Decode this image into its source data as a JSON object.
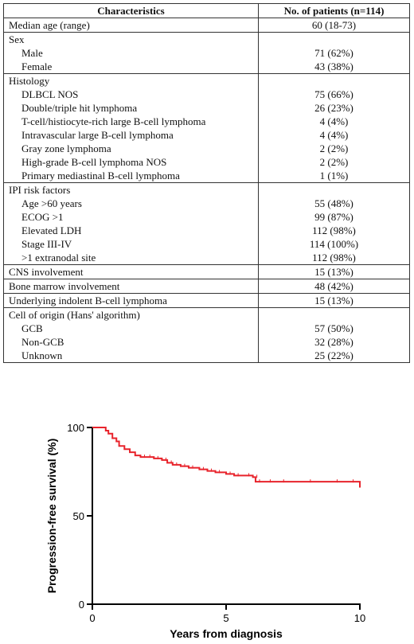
{
  "table": {
    "header": {
      "col1": "Characteristics",
      "col2": "No. of patients (n=114)"
    },
    "rows": [
      {
        "label": "Median age (range)",
        "value": "60 (18-73)",
        "indent": false,
        "group_start": true
      },
      {
        "label": "Sex",
        "value": "",
        "indent": false,
        "group_start": true
      },
      {
        "label": "Male",
        "value": "71 (62%)",
        "indent": true,
        "group_start": false
      },
      {
        "label": "Female",
        "value": "43 (38%)",
        "indent": true,
        "group_start": false
      },
      {
        "label": "Histology",
        "value": "",
        "indent": false,
        "group_start": true
      },
      {
        "label": "DLBCL NOS",
        "value": "75 (66%)",
        "indent": true,
        "group_start": false
      },
      {
        "label": "Double/triple hit lymphoma",
        "value": "26 (23%)",
        "indent": true,
        "group_start": false
      },
      {
        "label": "T-cell/histiocyte-rich large B-cell lymphoma",
        "value": "4 (4%)",
        "indent": true,
        "group_start": false
      },
      {
        "label": "Intravascular large B-cell lymphoma",
        "value": "4 (4%)",
        "indent": true,
        "group_start": false
      },
      {
        "label": "Gray zone lymphoma",
        "value": "2 (2%)",
        "indent": true,
        "group_start": false
      },
      {
        "label": "High-grade B-cell lymphoma NOS",
        "value": "2 (2%)",
        "indent": true,
        "group_start": false
      },
      {
        "label": "Primary mediastinal B-cell lymphoma",
        "value": "1 (1%)",
        "indent": true,
        "group_start": false
      },
      {
        "label": "IPI risk factors",
        "value": "",
        "indent": false,
        "group_start": true
      },
      {
        "label": "Age >60 years",
        "value": "55 (48%)",
        "indent": true,
        "group_start": false
      },
      {
        "label": "ECOG >1",
        "value": "99 (87%)",
        "indent": true,
        "group_start": false
      },
      {
        "label": "Elevated LDH",
        "value": "112 (98%)",
        "indent": true,
        "group_start": false
      },
      {
        "label": "Stage III-IV",
        "value": "114 (100%)",
        "indent": true,
        "group_start": false
      },
      {
        "label": ">1 extranodal site",
        "value": "112 (98%)",
        "indent": true,
        "group_start": false
      },
      {
        "label": "CNS involvement",
        "value": "15 (13%)",
        "indent": false,
        "group_start": true
      },
      {
        "label": "Bone marrow involvement",
        "value": "48 (42%)",
        "indent": false,
        "group_start": true
      },
      {
        "label": "Underlying indolent B-cell lymphoma",
        "value": "15 (13%)",
        "indent": false,
        "group_start": true
      },
      {
        "label": "Cell of origin (Hans' algorithm)",
        "value": "",
        "indent": false,
        "group_start": true
      },
      {
        "label": "GCB",
        "value": "57 (50%)",
        "indent": true,
        "group_start": false
      },
      {
        "label": "Non-GCB",
        "value": "32 (28%)",
        "indent": true,
        "group_start": false
      },
      {
        "label": "Unknown",
        "value": "25 (22%)",
        "indent": true,
        "group_start": false
      }
    ]
  },
  "chart_data": {
    "type": "line",
    "title": "",
    "xlabel": "Years from diagnosis",
    "ylabel": "Progression-free survival (%)",
    "xlim": [
      0,
      10
    ],
    "ylim": [
      0,
      100
    ],
    "xticks": [
      0,
      5,
      10
    ],
    "yticks": [
      0,
      50,
      100
    ],
    "grid": false,
    "line_color": "#e8232b",
    "series": [
      {
        "x": [
          0,
          0.3,
          0.5,
          0.6,
          0.75,
          0.9,
          1.0,
          1.2,
          1.4,
          1.6,
          1.8,
          2.0,
          2.3,
          2.6,
          2.8,
          3.0,
          3.3,
          3.6,
          4.0,
          4.3,
          4.6,
          5.0,
          5.3,
          5.7,
          6.0,
          6.1,
          6.5,
          7.0,
          8.0,
          9.0,
          9.6,
          10.0
        ],
        "y": [
          100,
          100,
          98.2,
          96.5,
          93.9,
          92.1,
          89.5,
          87.7,
          86.0,
          84.2,
          83.3,
          83.3,
          82.5,
          81.6,
          80.0,
          78.9,
          78.1,
          77.2,
          76.3,
          75.4,
          74.6,
          73.7,
          72.8,
          72.8,
          71.9,
          69.3,
          69.3,
          69.3,
          69.3,
          69.3,
          69.3,
          66.0
        ]
      }
    ]
  }
}
